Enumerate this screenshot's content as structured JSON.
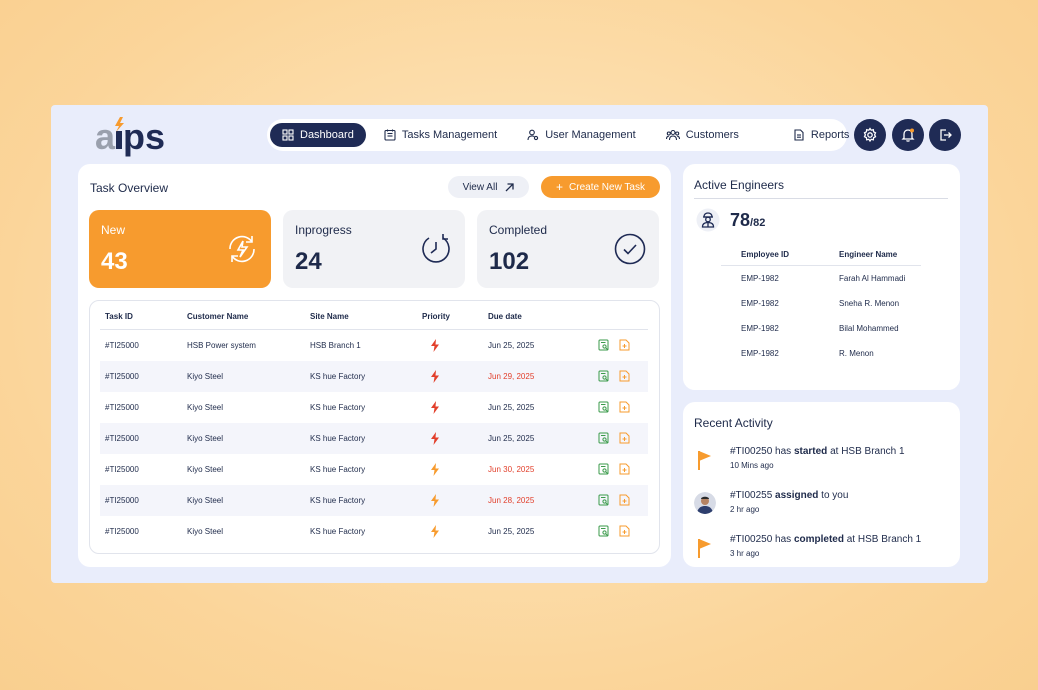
{
  "brand": {
    "logo_text": "aips",
    "accent": "#f79b2e",
    "navy": "#1f2b55"
  },
  "nav": {
    "items": [
      {
        "label": "Dashboard",
        "icon": "dashboard-icon",
        "active": true
      },
      {
        "label": "Tasks Management",
        "icon": "tasks-icon"
      },
      {
        "label": "User Management",
        "icon": "user-management-icon"
      },
      {
        "label": "Customers",
        "icon": "customers-icon"
      },
      {
        "label": "Reports",
        "icon": "reports-icon"
      }
    ]
  },
  "header_buttons": [
    "gear-icon",
    "bell-icon",
    "logout-icon"
  ],
  "task_overview": {
    "title": "Task Overview",
    "view_all_label": "View All",
    "create_label": "Create New Task",
    "stats": [
      {
        "label": "New",
        "value": "43"
      },
      {
        "label": "Inprogress",
        "value": "24"
      },
      {
        "label": "Completed",
        "value": "102"
      }
    ],
    "table": {
      "headers": {
        "task_id": "Task ID",
        "customer": "Customer Name",
        "site": "Site  Name",
        "priority": "Priority",
        "due": "Due date"
      },
      "rows": [
        {
          "task_id": "#TI25000",
          "customer": "HSB Power system",
          "site": "HSB Branch 1",
          "priority": "high",
          "due": "Jun 25, 2025",
          "overdue": false
        },
        {
          "task_id": "#TI25000",
          "customer": "Kiyo Steel",
          "site": "KS hue Factory",
          "priority": "high",
          "due": "Jun 29, 2025",
          "overdue": true
        },
        {
          "task_id": "#TI25000",
          "customer": "Kiyo Steel",
          "site": "KS hue Factory",
          "priority": "high",
          "due": "Jun 25, 2025",
          "overdue": false
        },
        {
          "task_id": "#TI25000",
          "customer": "Kiyo Steel",
          "site": "KS hue Factory",
          "priority": "high",
          "due": "Jun 25, 2025",
          "overdue": false
        },
        {
          "task_id": "#TI25000",
          "customer": "Kiyo Steel",
          "site": "KS hue Factory",
          "priority": "medium",
          "due": "Jun 30, 2025",
          "overdue": true
        },
        {
          "task_id": "#TI25000",
          "customer": "Kiyo Steel",
          "site": "KS hue Factory",
          "priority": "medium",
          "due": "Jun 28, 2025",
          "overdue": true
        },
        {
          "task_id": "#TI25000",
          "customer": "Kiyo Steel",
          "site": "KS hue Factory",
          "priority": "medium",
          "due": "Jun 25, 2025",
          "overdue": false
        }
      ]
    }
  },
  "active_engineers": {
    "title": "Active Engineers",
    "count": "78",
    "total": "/82",
    "headers": {
      "emp_id": "Employee ID",
      "name": "Engineer Name"
    },
    "rows": [
      {
        "emp_id": "EMP-1982",
        "name": "Farah Al Hammadi"
      },
      {
        "emp_id": "EMP-1982",
        "name": "Sneha R. Menon"
      },
      {
        "emp_id": "EMP-1982",
        "name": "Bilal Mohammed"
      },
      {
        "emp_id": "EMP-1982",
        "name": "R. Menon"
      }
    ]
  },
  "recent_activity": {
    "title": "Recent Activity",
    "items": [
      {
        "type": "flag",
        "pre": "#TI00250 has ",
        "bold": "started",
        "post": " at HSB Branch 1",
        "time": "10 Mins ago"
      },
      {
        "type": "avatar",
        "pre": "#TI00255 ",
        "bold": "assigned",
        "post": " to you",
        "time": "2 hr ago"
      },
      {
        "type": "flag",
        "pre": "#TI00250 has ",
        "bold": "completed",
        "post": " at HSB Branch 1",
        "time": "3 hr ago"
      }
    ]
  },
  "colors": {
    "priority_high": "#e2402c",
    "priority_medium": "#f79b2e",
    "overdue": "#e2402c",
    "view_icon": "#3a9a4a",
    "add_icon": "#f79b2e"
  }
}
